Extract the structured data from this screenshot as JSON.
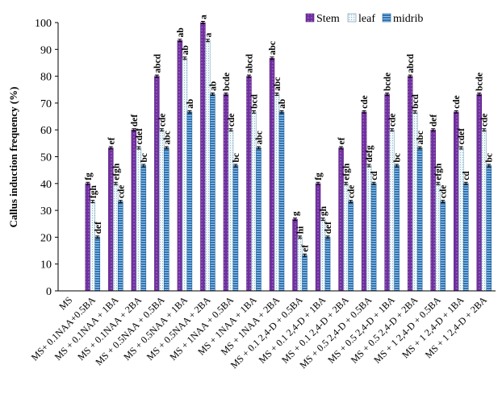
{
  "chart_data": {
    "type": "bar",
    "title": "",
    "xlabel": "",
    "ylabel": "Callus induction frequency (%)",
    "ylim": [
      0,
      100
    ],
    "yticks": [
      0,
      10,
      20,
      30,
      40,
      50,
      60,
      70,
      80,
      90,
      100
    ],
    "grid": false,
    "legend_position": "top-right",
    "error_bars": true,
    "categories": [
      "MS",
      "MS+ 0.1NAA+0.5BA",
      "MS + 0.1NAA + 1BA",
      "MS + 0.1NAA + 2BA",
      "MS + 0.5NAA + 0.5BA",
      "MS + 0.5NAA + 1BA",
      "MS + 0.5NAA + 2BA",
      "MS + 1NAA + 0.5BA",
      "MS + 1NAA + 1BA",
      "MS + 1NAA + 2BA",
      "MS + 0.1 2,4-D + 0.5BA",
      "MS + 0.1 2,4-D + 1BA",
      "MS + 0.1 2,4-D + 2BA",
      "MS + 0.5 2,4-D + 0.5BA",
      "MS + 0.5 2,4-D + 1BA",
      "MS + 0.5 2,4-D + 2BA",
      "MS + 1 2,4-D + 0.5BA",
      "MS + 1 2,4-D + 1BA",
      "MS + 1 2,4-D + 2BA"
    ],
    "series": [
      {
        "name": "Stem",
        "color": "#7030A0",
        "values": [
          0,
          40,
          53.3,
          60,
          80,
          93.3,
          100,
          73.3,
          80,
          86.7,
          26.7,
          40,
          53.3,
          66.7,
          73.3,
          80,
          60,
          66.7,
          73.3
        ],
        "labels": [
          "",
          "fg",
          "ef",
          "def",
          "abcd",
          "ab",
          "a",
          "bcde",
          "abcd",
          "abc",
          "g",
          "fg",
          "ef",
          "cde",
          "bcde",
          "abcd",
          "def",
          "cde",
          "bcde"
        ]
      },
      {
        "name": "leaf",
        "color": "#DAEEF3",
        "values": [
          0,
          33.3,
          40,
          53.3,
          60,
          86.7,
          93.3,
          60,
          66.7,
          73.3,
          20,
          26.7,
          40,
          46.7,
          60,
          66.7,
          40,
          53.3,
          60
        ],
        "labels": [
          "",
          "fgh",
          "efgh",
          "cdef",
          "cde",
          "ab",
          "a",
          "cde",
          "bcd",
          "abc",
          "hi",
          "gh",
          "efgh",
          "defg",
          "cde",
          "bcd",
          "efgh",
          "cdef",
          "cde"
        ]
      },
      {
        "name": "midrib",
        "color": "#2E75B6",
        "values": [
          0,
          20,
          33.3,
          46.7,
          53.3,
          66.7,
          73.3,
          46.7,
          53.3,
          66.7,
          13.3,
          20,
          33.3,
          40,
          46.7,
          53.3,
          33.3,
          40,
          46.7
        ],
        "labels": [
          "",
          "def",
          "cde",
          "bc",
          "abc",
          "ab",
          "ab",
          "bc",
          "abc",
          "ab",
          "ef",
          "def",
          "cde",
          "cd",
          "bc",
          "abc",
          "cde",
          "cd",
          "bc"
        ]
      }
    ]
  }
}
